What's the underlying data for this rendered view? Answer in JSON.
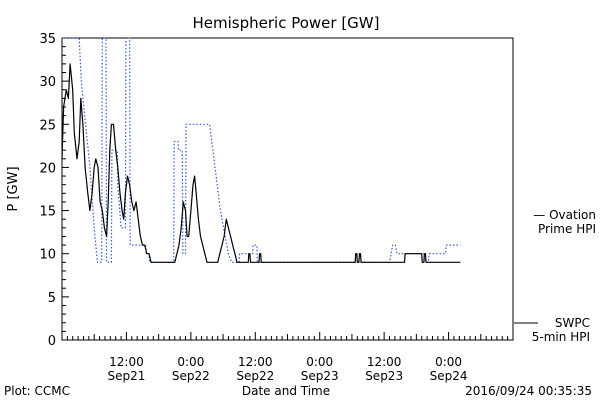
{
  "chart_data": {
    "type": "line",
    "title": "Hemispheric Power [GW]",
    "xlabel": "Date and Time",
    "ylabel": "P [GW]",
    "ylim": [
      0,
      35
    ],
    "xlim": [
      0,
      84
    ],
    "y_ticks": [
      0,
      5,
      10,
      15,
      20,
      25,
      30,
      35
    ],
    "x_ticks": [
      {
        "x": 12,
        "time": "12:00",
        "date": "Sep21"
      },
      {
        "x": 24,
        "time": "0:00",
        "date": "Sep22"
      },
      {
        "x": 36,
        "time": "12:00",
        "date": "Sep22"
      },
      {
        "x": 48,
        "time": "0:00",
        "date": "Sep23"
      },
      {
        "x": 60,
        "time": "12:00",
        "date": "Sep23"
      },
      {
        "x": 72,
        "time": "0:00",
        "date": "Sep24"
      }
    ],
    "series": [
      {
        "name": "Ovation Prime HPI",
        "legend_lines": [
          "— Ovation",
          "Prime HPI"
        ],
        "color": "#3060d0",
        "style": "dotted",
        "points": [
          [
            0,
            35
          ],
          [
            3.2,
            35
          ],
          [
            3.6,
            30
          ],
          [
            4.4,
            25
          ],
          [
            5.2,
            20
          ],
          [
            6.0,
            13
          ],
          [
            6.6,
            9
          ],
          [
            7.4,
            9
          ],
          [
            7.5,
            35
          ],
          [
            8.2,
            35
          ],
          [
            8.3,
            9
          ],
          [
            9.2,
            9
          ],
          [
            9.3,
            22
          ],
          [
            10.3,
            22
          ],
          [
            10.4,
            18
          ],
          [
            11.0,
            13
          ],
          [
            11.8,
            13
          ],
          [
            11.9,
            35
          ],
          [
            12.6,
            35
          ],
          [
            12.7,
            11
          ],
          [
            15.6,
            11
          ],
          [
            15.7,
            10
          ],
          [
            16.2,
            10
          ],
          [
            16.3,
            9
          ],
          [
            20.8,
            9
          ],
          [
            20.9,
            23
          ],
          [
            21.6,
            23
          ],
          [
            21.7,
            22
          ],
          [
            22.4,
            22
          ],
          [
            22.5,
            10
          ],
          [
            23.0,
            10
          ],
          [
            23.1,
            25
          ],
          [
            27.5,
            25
          ],
          [
            28.5,
            20
          ],
          [
            29.5,
            15
          ],
          [
            30.4,
            12
          ],
          [
            31.0,
            10
          ],
          [
            31.6,
            9
          ],
          [
            33.0,
            9
          ],
          [
            33.1,
            10
          ],
          [
            35.5,
            10
          ],
          [
            35.6,
            11
          ],
          [
            36.3,
            11
          ],
          [
            36.4,
            9
          ],
          [
            61.0,
            9
          ],
          [
            61.6,
            11
          ],
          [
            62.1,
            11
          ],
          [
            62.4,
            10
          ],
          [
            67.5,
            10
          ],
          [
            67.8,
            9
          ],
          [
            68.2,
            9
          ],
          [
            68.4,
            10
          ],
          [
            71.4,
            10
          ],
          [
            71.6,
            11
          ],
          [
            74.2,
            11
          ]
        ]
      },
      {
        "name": "SWPC 5-min HPI",
        "legend_lines": [
          "SWPC",
          "5-min HPI"
        ],
        "color": "#000000",
        "style": "solid",
        "points": [
          [
            0,
            21
          ],
          [
            0.3,
            27
          ],
          [
            0.8,
            29
          ],
          [
            1.2,
            28
          ],
          [
            1.5,
            32
          ],
          [
            2.0,
            29
          ],
          [
            2.3,
            24
          ],
          [
            2.8,
            21
          ],
          [
            3.2,
            23
          ],
          [
            3.5,
            28
          ],
          [
            3.9,
            25
          ],
          [
            4.3,
            20
          ],
          [
            4.8,
            17
          ],
          [
            5.2,
            15
          ],
          [
            5.6,
            17
          ],
          [
            6.0,
            20
          ],
          [
            6.3,
            21
          ],
          [
            6.7,
            20
          ],
          [
            7.1,
            16
          ],
          [
            7.5,
            15
          ],
          [
            7.9,
            13
          ],
          [
            8.3,
            12
          ],
          [
            8.6,
            16
          ],
          [
            8.9,
            22
          ],
          [
            9.2,
            25
          ],
          [
            9.6,
            25
          ],
          [
            10.0,
            22
          ],
          [
            10.4,
            20
          ],
          [
            10.8,
            17
          ],
          [
            11.2,
            15
          ],
          [
            11.5,
            14
          ],
          [
            11.8,
            17
          ],
          [
            12.2,
            19
          ],
          [
            12.6,
            18
          ],
          [
            13.0,
            16
          ],
          [
            13.4,
            15
          ],
          [
            13.8,
            16
          ],
          [
            14.2,
            14
          ],
          [
            14.6,
            12
          ],
          [
            15.0,
            11
          ],
          [
            15.4,
            11
          ],
          [
            15.8,
            10
          ],
          [
            16.2,
            10
          ],
          [
            16.6,
            9
          ],
          [
            17.0,
            9
          ],
          [
            21.0,
            9
          ],
          [
            21.4,
            10
          ],
          [
            21.8,
            11
          ],
          [
            22.2,
            13
          ],
          [
            22.6,
            16
          ],
          [
            23.0,
            15
          ],
          [
            23.3,
            12
          ],
          [
            23.6,
            12
          ],
          [
            24.0,
            15
          ],
          [
            24.4,
            18
          ],
          [
            24.7,
            19
          ],
          [
            25.0,
            17
          ],
          [
            25.4,
            14
          ],
          [
            25.8,
            12
          ],
          [
            26.2,
            11
          ],
          [
            26.6,
            10
          ],
          [
            27.0,
            9
          ],
          [
            29.0,
            9
          ],
          [
            29.4,
            10
          ],
          [
            29.8,
            11
          ],
          [
            30.2,
            12
          ],
          [
            30.6,
            14
          ],
          [
            31.0,
            13
          ],
          [
            31.4,
            12
          ],
          [
            31.8,
            11
          ],
          [
            32.2,
            10
          ],
          [
            32.6,
            9
          ],
          [
            34.7,
            9
          ],
          [
            34.8,
            10
          ],
          [
            35.0,
            10
          ],
          [
            35.1,
            9
          ],
          [
            36.7,
            9
          ],
          [
            36.8,
            10
          ],
          [
            37.0,
            10
          ],
          [
            37.1,
            9
          ],
          [
            54.6,
            9
          ],
          [
            54.7,
            10
          ],
          [
            54.9,
            10
          ],
          [
            55.0,
            9
          ],
          [
            55.3,
            9
          ],
          [
            55.4,
            10
          ],
          [
            55.6,
            10
          ],
          [
            55.7,
            9
          ],
          [
            63.8,
            9
          ],
          [
            63.9,
            10
          ],
          [
            67.0,
            10
          ],
          [
            67.1,
            9
          ],
          [
            67.4,
            9
          ],
          [
            67.5,
            10
          ],
          [
            67.7,
            10
          ],
          [
            67.8,
            9
          ],
          [
            74.2,
            9
          ]
        ]
      }
    ],
    "grid": false
  },
  "footer": {
    "left": "Plot: CCMC",
    "right": "2016/09/24 00:35:35"
  }
}
